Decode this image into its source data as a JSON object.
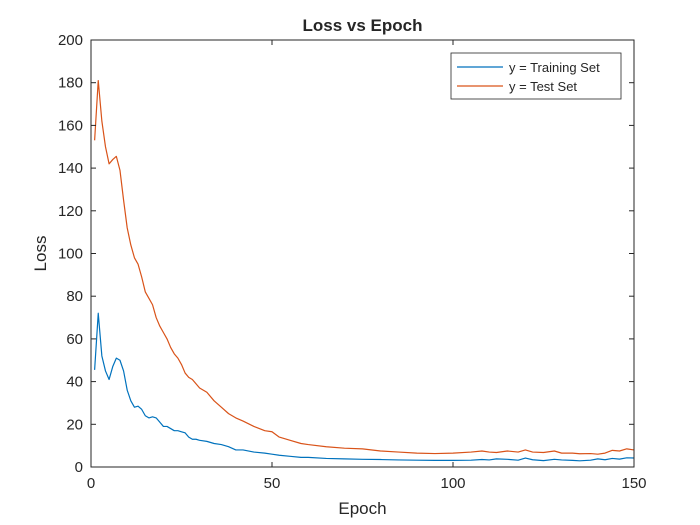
{
  "chart_data": {
    "type": "line",
    "title": "Loss vs Epoch",
    "xlabel": "Epoch",
    "ylabel": "Loss",
    "xlim": [
      0,
      150
    ],
    "ylim": [
      0,
      200
    ],
    "xticks": [
      0,
      50,
      100,
      150
    ],
    "yticks": [
      0,
      20,
      40,
      60,
      80,
      100,
      120,
      140,
      160,
      180,
      200
    ],
    "grid": false,
    "legend_position": "top-right",
    "x": [
      1,
      2,
      3,
      4,
      5,
      6,
      7,
      8,
      9,
      10,
      11,
      12,
      13,
      14,
      15,
      16,
      17,
      18,
      19,
      20,
      21,
      22,
      23,
      24,
      25,
      26,
      27,
      28,
      29,
      30,
      32,
      34,
      36,
      38,
      40,
      42,
      45,
      48,
      50,
      52,
      55,
      58,
      60,
      65,
      70,
      75,
      80,
      85,
      90,
      95,
      100,
      105,
      108,
      110,
      112,
      115,
      118,
      120,
      122,
      125,
      128,
      130,
      133,
      135,
      138,
      140,
      142,
      144,
      146,
      148,
      150
    ],
    "series": [
      {
        "name": "y = Training Set",
        "color": "#0072BD",
        "values": [
          45.5,
          72,
          52,
          45,
          41,
          47,
          51,
          50,
          45,
          36,
          31,
          28,
          28.5,
          27,
          24,
          23,
          23.5,
          23,
          21,
          19,
          19,
          18,
          17,
          17,
          16.5,
          16,
          14,
          13,
          13,
          12.5,
          12,
          11,
          10.5,
          9.5,
          8,
          8,
          7,
          6.5,
          6,
          5.5,
          5,
          4.5,
          4.5,
          4,
          3.8,
          3.6,
          3.5,
          3.3,
          3.2,
          3.1,
          3.1,
          3.2,
          3.5,
          3.3,
          3.8,
          3.6,
          3.2,
          4.2,
          3.4,
          3,
          3.6,
          3.3,
          3.1,
          2.9,
          3.2,
          3.8,
          3.4,
          4,
          3.7,
          4.3,
          4.2
        ]
      },
      {
        "name": "y = Test Set",
        "color": "#D95319",
        "values": [
          153,
          181,
          162,
          150,
          142,
          144,
          145.5,
          139,
          125,
          112,
          104,
          98,
          95,
          89,
          82,
          79,
          76,
          70,
          66,
          63,
          60,
          56,
          53,
          51,
          48,
          44,
          42,
          41,
          39,
          37,
          35,
          31,
          28,
          25,
          23,
          21.5,
          19,
          17,
          16.5,
          14,
          12.5,
          11,
          10.5,
          9.5,
          8.8,
          8.5,
          7.5,
          7,
          6.5,
          6.3,
          6.5,
          7,
          7.5,
          7,
          6.8,
          7.5,
          7,
          8,
          7,
          6.8,
          7.5,
          6.5,
          6.5,
          6.2,
          6.3,
          6,
          6.5,
          7.8,
          7.5,
          8.5,
          8
        ]
      }
    ]
  }
}
